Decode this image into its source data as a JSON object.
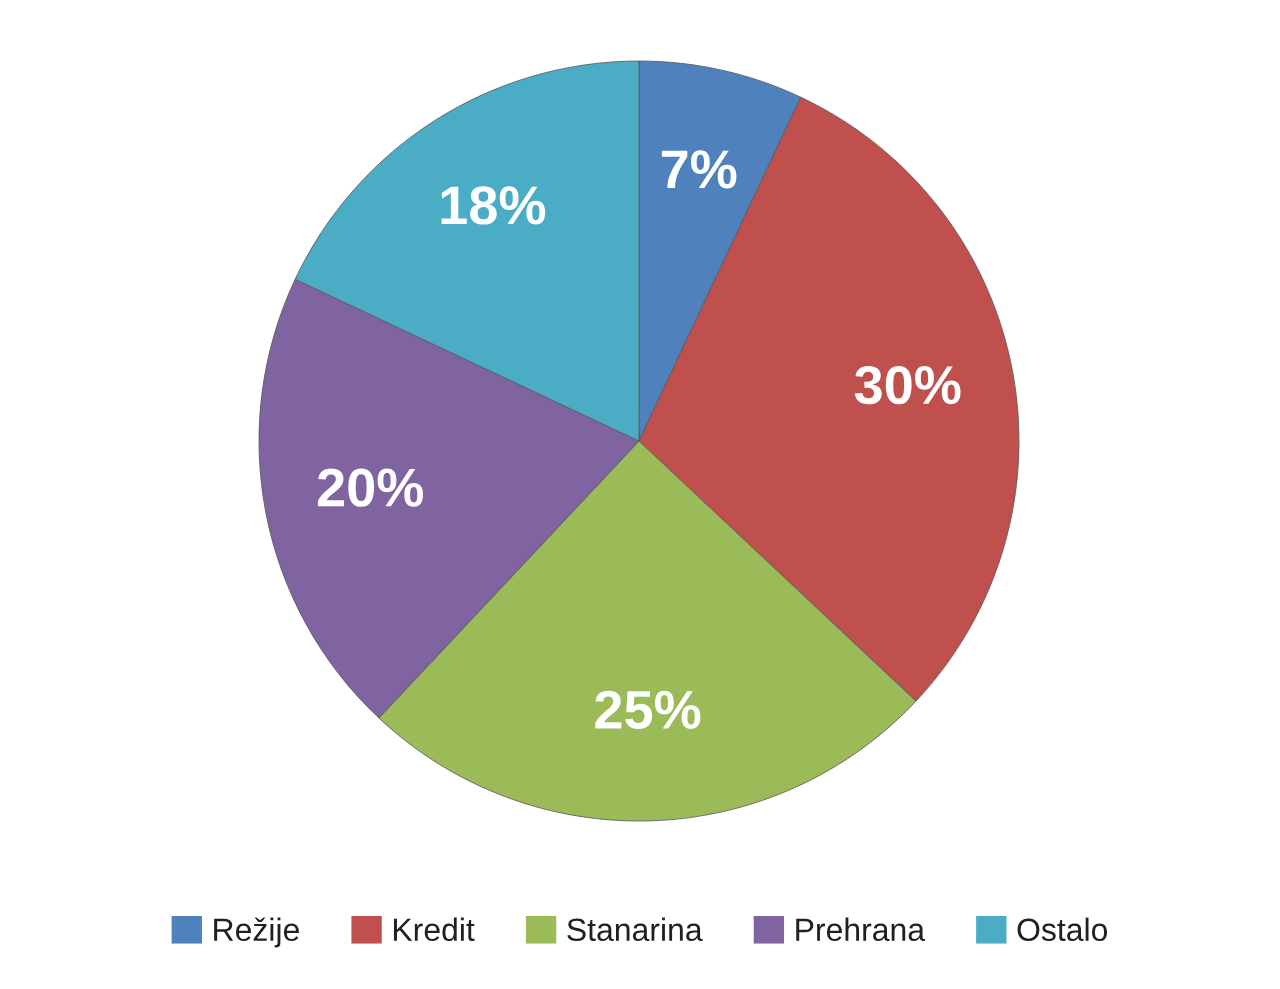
{
  "chart_data": {
    "type": "pie",
    "categories": [
      "Režije",
      "Kredit",
      "Stanarina",
      "Prehrana",
      "Ostalo"
    ],
    "values": [
      7,
      30,
      25,
      20,
      18
    ],
    "value_labels": [
      "7%",
      "30%",
      "25%",
      "20%",
      "18%"
    ],
    "colors": [
      "#4f81bd",
      "#c0504d",
      "#9bbb59",
      "#8064a2",
      "#4bacc6"
    ],
    "legend": "bottom"
  }
}
